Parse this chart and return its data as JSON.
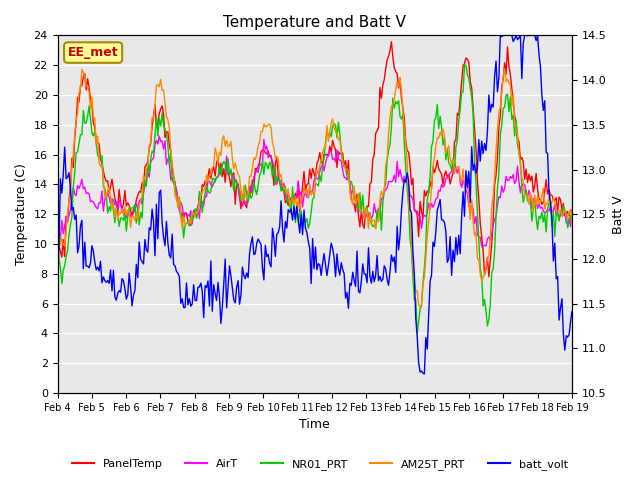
{
  "title": "Temperature and Batt V",
  "xlabel": "Time",
  "ylabel_left": "Temperature (C)",
  "ylabel_right": "Batt V",
  "annotation": "EE_met",
  "ylim_left": [
    0,
    24
  ],
  "ylim_right": [
    10.5,
    14.5
  ],
  "yticks_left": [
    0,
    2,
    4,
    6,
    8,
    10,
    12,
    14,
    16,
    18,
    20,
    22,
    24
  ],
  "yticks_right": [
    10.5,
    11.0,
    11.5,
    12.0,
    12.5,
    13.0,
    13.5,
    14.0,
    14.5
  ],
  "xtick_labels": [
    "Feb 4",
    "Feb 5",
    "Feb 6",
    "Feb 7",
    "Feb 8",
    "Feb 9",
    "Feb 10",
    "Feb 11",
    "Feb 12",
    "Feb 13",
    "Feb 14",
    "Feb 15",
    "Feb 16",
    "Feb 17",
    "Feb 18",
    "Feb 19"
  ],
  "colors": {
    "PanelTemp": "#ff0000",
    "AirT": "#ff00ff",
    "NR01_PRT": "#00cc00",
    "AM25T_PRT": "#ff8800",
    "batt_volt": "#0000ff"
  },
  "legend_entries": [
    "PanelTemp",
    "AirT",
    "NR01_PRT",
    "AM25T_PRT",
    "batt_volt"
  ],
  "bg_color": "#e8e8e8",
  "annotation_bg": "#ffff99",
  "annotation_border": "#aa8800",
  "annotation_text_color": "#cc0000",
  "grid_color": "#ffffff",
  "n_points": 360
}
